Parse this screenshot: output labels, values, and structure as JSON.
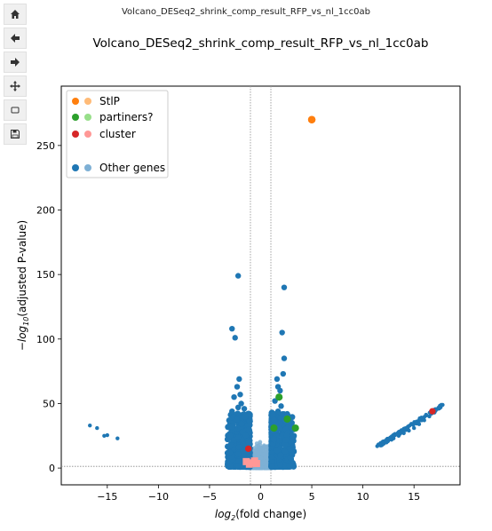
{
  "window": {
    "title": "Volcano_DESeq2_shrink_comp_result_RFP_vs_nl_1cc0ab"
  },
  "toolbar": [
    {
      "name": "home-icon",
      "label": "Home"
    },
    {
      "name": "back-icon",
      "label": "Back"
    },
    {
      "name": "forward-icon",
      "label": "Forward"
    },
    {
      "name": "pan-icon",
      "label": "Pan"
    },
    {
      "name": "zoom-icon",
      "label": "Zoom"
    },
    {
      "name": "save-icon",
      "label": "Save"
    }
  ],
  "colors": {
    "other_dark": "#1f77b4",
    "other_light": "#7eb0d5",
    "stlp_dark": "#ff7f0e",
    "stlp_light": "#ffbb78",
    "partners_dark": "#2ca02c",
    "partners_light": "#98df8a",
    "cluster_dark": "#d62728",
    "cluster_light": "#ff9896"
  },
  "chart_data": {
    "type": "scatter",
    "title": "Volcano_DESeq2_shrink_comp_result_RFP_vs_nl_1cc0ab",
    "xlabel_main": "log",
    "xlabel_sub": "2",
    "xlabel_rest": "(fold change)",
    "ylabel_prefix": "−log",
    "ylabel_sub": "10",
    "ylabel_rest": "(adjusted P-value)",
    "xlim": [
      -19.5,
      19.5
    ],
    "ylim": [
      -13,
      296
    ],
    "xticks": [
      -15,
      -10,
      -5,
      0,
      5,
      10,
      15
    ],
    "yticks": [
      0,
      50,
      100,
      150,
      200,
      250
    ],
    "vlines": [
      -1,
      1
    ],
    "hline": 1.3,
    "legend": [
      {
        "label": "StlP",
        "dark": "#ff7f0e",
        "light": "#ffbb78"
      },
      {
        "label": "partiners?",
        "dark": "#2ca02c",
        "light": "#98df8a"
      },
      {
        "label": "cluster",
        "dark": "#d62728",
        "light": "#ff9896"
      },
      {
        "label": "Other genes",
        "dark": "#1f77b4",
        "light": "#7eb0d5"
      }
    ],
    "legend_position": "upper-left",
    "series": [
      {
        "name": "StlP",
        "points": [
          [
            5.0,
            270
          ]
        ]
      },
      {
        "name": "partiners?",
        "points": [
          [
            1.8,
            55
          ],
          [
            2.6,
            38
          ],
          [
            3.4,
            31
          ],
          [
            1.3,
            31
          ]
        ]
      },
      {
        "name": "cluster",
        "points": [
          [
            -1.2,
            15
          ],
          [
            16.8,
            44
          ]
        ]
      },
      {
        "name": "Other genes",
        "points": [
          [
            -16.7,
            33
          ],
          [
            -16.0,
            31
          ],
          [
            -15.3,
            25
          ],
          [
            -15.0,
            25.5
          ],
          [
            -14.0,
            23
          ],
          [
            -2.2,
            149
          ],
          [
            -2.8,
            108
          ],
          [
            -2.5,
            101
          ],
          [
            -2.1,
            69
          ],
          [
            -2.3,
            63
          ],
          [
            -2.0,
            57
          ],
          [
            -2.6,
            55
          ],
          [
            -1.9,
            50
          ],
          [
            -2.2,
            47
          ],
          [
            -2.8,
            44
          ],
          [
            -1.6,
            46
          ],
          [
            2.3,
            140
          ],
          [
            2.1,
            105
          ],
          [
            2.3,
            85
          ],
          [
            2.2,
            73
          ],
          [
            1.6,
            69
          ],
          [
            1.7,
            63
          ],
          [
            1.9,
            60
          ],
          [
            1.4,
            52
          ],
          [
            2.0,
            48
          ],
          [
            1.7,
            44
          ],
          [
            2.6,
            42
          ],
          [
            -3.0,
            12
          ],
          [
            11.4,
            17
          ],
          [
            11.8,
            19
          ],
          [
            12.3,
            21
          ],
          [
            12.8,
            22
          ],
          [
            13.0,
            23
          ],
          [
            13.5,
            25
          ],
          [
            14.0,
            27
          ],
          [
            14.5,
            29
          ],
          [
            15.0,
            31
          ],
          [
            15.5,
            34
          ],
          [
            16.0,
            37
          ],
          [
            16.5,
            40
          ],
          [
            17.0,
            43
          ],
          [
            17.4,
            46
          ],
          [
            17.8,
            49
          ]
        ]
      }
    ]
  }
}
